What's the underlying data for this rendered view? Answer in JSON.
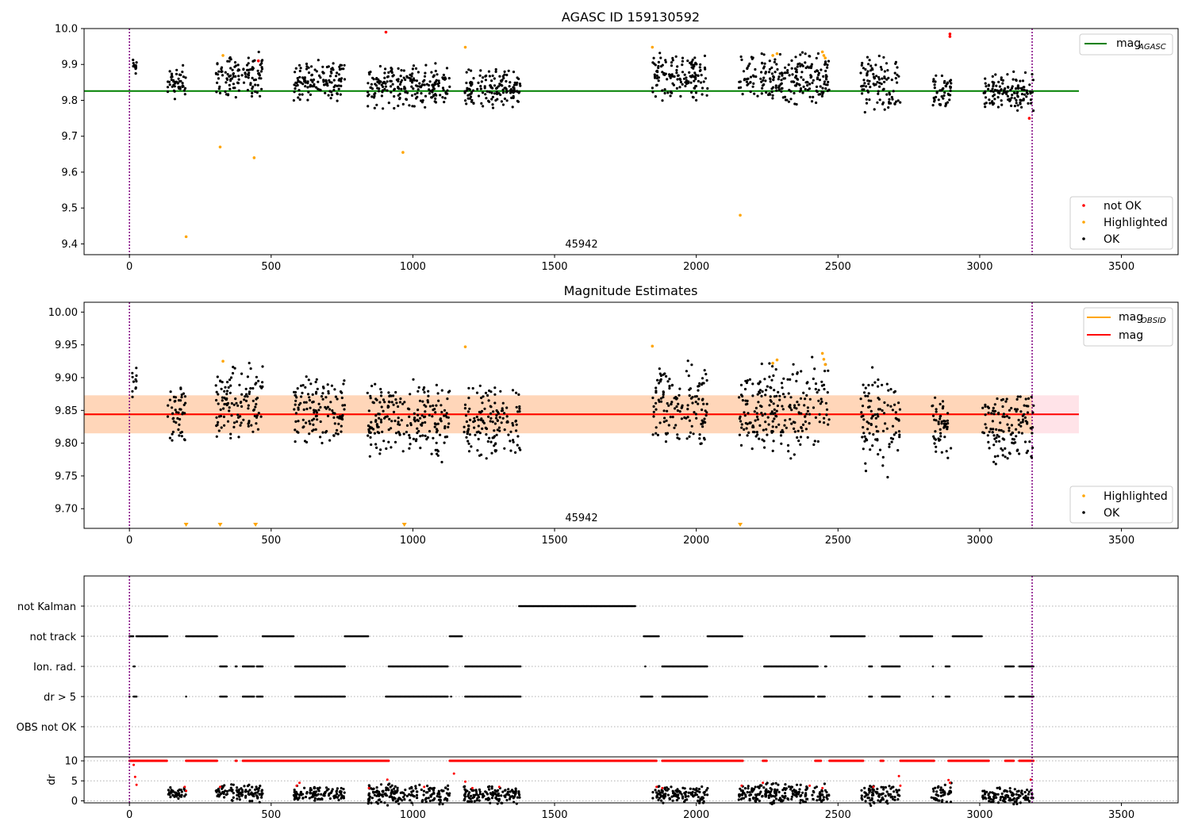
{
  "chart_data": [
    {
      "type": "scatter",
      "title": "AGASC ID 159130592",
      "annotation": "45942",
      "xlim": [
        -160,
        3700
      ],
      "ylim": [
        9.37,
        10.0
      ],
      "xticks": [
        "0",
        "500",
        "1000",
        "1500",
        "2000",
        "2500",
        "3000",
        "3500"
      ],
      "yticks": [
        "9.4",
        "9.5",
        "9.6",
        "9.7",
        "9.8",
        "9.9",
        "10.0"
      ],
      "vlines": [
        0,
        3185
      ],
      "hline": {
        "name": "mag_AGASC",
        "legend_label": "mag",
        "legend_sub": "AGASC",
        "y": 9.826,
        "x_range": [
          -160,
          3350
        ],
        "color": "#008000"
      },
      "series": [
        {
          "name": "not OK",
          "color": "#ff0000",
          "points": [
            [
              905,
              9.99
            ],
            [
              455,
              9.91
            ],
            [
              2895,
              9.985
            ],
            [
              2895,
              9.978
            ],
            [
              3175,
              9.75
            ]
          ]
        },
        {
          "name": "Highlighted",
          "color": "#ffa500",
          "points": [
            [
              200,
              9.42
            ],
            [
              320,
              9.67
            ],
            [
              440,
              9.64
            ],
            [
              330,
              9.925
            ],
            [
              965,
              9.655
            ],
            [
              1185,
              9.948
            ],
            [
              1845,
              9.948
            ],
            [
              2155,
              9.48
            ],
            [
              2270,
              9.925
            ],
            [
              2285,
              9.93
            ],
            [
              2445,
              9.935
            ],
            [
              2450,
              9.925
            ],
            [
              2455,
              9.918
            ]
          ]
        },
        {
          "name": "OK",
          "color": "#000000",
          "clusters": [
            [
              10,
              25,
              9.895,
              0.03
            ],
            [
              135,
              200,
              9.85,
              0.06
            ],
            [
              305,
              470,
              9.87,
              0.07
            ],
            [
              580,
              760,
              9.855,
              0.06
            ],
            [
              840,
              1130,
              9.84,
              0.07
            ],
            [
              1180,
              1380,
              9.835,
              0.06
            ],
            [
              1845,
              2040,
              9.865,
              0.07
            ],
            [
              2150,
              2470,
              9.86,
              0.08
            ],
            [
              2580,
              2720,
              9.845,
              0.09
            ],
            [
              2830,
              2900,
              9.825,
              0.05
            ],
            [
              3010,
              3190,
              9.825,
              0.06
            ]
          ]
        }
      ]
    },
    {
      "type": "scatter",
      "title": "Magnitude Estimates",
      "annotation": "45942",
      "xlim": [
        -160,
        3700
      ],
      "ylim": [
        9.67,
        10.015
      ],
      "xticks": [
        "0",
        "500",
        "1000",
        "1500",
        "2000",
        "2500",
        "3000",
        "3500"
      ],
      "yticks": [
        "9.70",
        "9.75",
        "9.80",
        "9.85",
        "9.90",
        "9.95",
        "10.00"
      ],
      "vlines": [
        0,
        3185
      ],
      "band": {
        "y_low": 9.815,
        "y_high": 9.873,
        "x_range": [
          -160,
          3350
        ]
      },
      "mag_line": {
        "name": "mag",
        "y": 9.844,
        "x_range": [
          -160,
          3350
        ],
        "color": "#ff0000"
      },
      "obsid_segment": {
        "name": "mag_OBSID",
        "legend_label": "mag",
        "legend_sub": "OBSID",
        "y": 9.844,
        "x_range": [
          -160,
          3185
        ],
        "color": "#ffa500"
      },
      "series": [
        {
          "name": "Highlighted",
          "color": "#ffa500",
          "points": [
            [
              330,
              9.925
            ],
            [
              1185,
              9.947
            ],
            [
              1845,
              9.948
            ],
            [
              2270,
              9.922
            ],
            [
              2285,
              9.927
            ],
            [
              2445,
              9.937
            ],
            [
              2450,
              9.928
            ],
            [
              2455,
              9.92
            ]
          ],
          "offscale_markers": [
            200,
            320,
            445,
            970,
            2155
          ]
        },
        {
          "name": "OK",
          "color": "#000000",
          "clusters": [
            [
              10,
              25,
              9.895,
              0.03
            ],
            [
              135,
              200,
              9.845,
              0.05
            ],
            [
              305,
              470,
              9.865,
              0.07
            ],
            [
              580,
              760,
              9.85,
              0.06
            ],
            [
              840,
              1130,
              9.835,
              0.07
            ],
            [
              1180,
              1380,
              9.83,
              0.06
            ],
            [
              1845,
              2040,
              9.86,
              0.07
            ],
            [
              2150,
              2470,
              9.855,
              0.08
            ],
            [
              2580,
              2720,
              9.835,
              0.09
            ],
            [
              2830,
              2900,
              9.82,
              0.06
            ],
            [
              3010,
              3190,
              9.82,
              0.06
            ]
          ]
        }
      ]
    },
    {
      "type": "scatter",
      "title": "",
      "xlim": [
        -160,
        3700
      ],
      "categories": [
        "not Kalman",
        "not track",
        "Ion. rad.",
        "dr > 5",
        "OBS not OK"
      ],
      "flag_segments": {
        "not Kalman": [
          [
            1375,
            1785
          ]
        ],
        "not track": [
          [
            0,
            15
          ],
          [
            25,
            135
          ],
          [
            200,
            310
          ],
          [
            470,
            580
          ],
          [
            760,
            845
          ],
          [
            1130,
            1175
          ],
          [
            1815,
            1870
          ],
          [
            2040,
            2165
          ],
          [
            2475,
            2595
          ],
          [
            2720,
            2835
          ],
          [
            2905,
            3010
          ]
        ],
        "Ion. rad.": [
          [
            15,
            20
          ],
          [
            320,
            345
          ],
          [
            375,
            380
          ],
          [
            400,
            440
          ],
          [
            450,
            470
          ],
          [
            585,
            760
          ],
          [
            915,
            1125
          ],
          [
            1185,
            1380
          ],
          [
            1820,
            1823
          ],
          [
            1880,
            2040
          ],
          [
            2240,
            2430
          ],
          [
            2455,
            2460
          ],
          [
            2610,
            2620
          ],
          [
            2655,
            2720
          ],
          [
            2835,
            2838
          ],
          [
            2880,
            2895
          ],
          [
            3090,
            3120
          ],
          [
            3140,
            3190
          ]
        ],
        "dr > 5": [
          [
            0,
            3
          ],
          [
            15,
            25
          ],
          [
            200,
            203
          ],
          [
            320,
            345
          ],
          [
            400,
            440
          ],
          [
            450,
            470
          ],
          [
            585,
            760
          ],
          [
            905,
            1125
          ],
          [
            1135,
            1138
          ],
          [
            1185,
            1380
          ],
          [
            1805,
            1845
          ],
          [
            1880,
            2040
          ],
          [
            2240,
            2415
          ],
          [
            2430,
            2455
          ],
          [
            2610,
            2620
          ],
          [
            2655,
            2720
          ],
          [
            2835,
            2838
          ],
          [
            2880,
            2895
          ],
          [
            3090,
            3120
          ],
          [
            3140,
            3190
          ]
        ],
        "OBS not OK": []
      },
      "dr_panel": {
        "ylabel": "dr",
        "ylim": [
          -0.5,
          11
        ],
        "yticks": [
          "0",
          "5",
          "10"
        ],
        "capped_value": 10,
        "capped_segments": [
          [
            0,
            135
          ],
          [
            200,
            310
          ],
          [
            375,
            380
          ],
          [
            400,
            915
          ],
          [
            1130,
            1860
          ],
          [
            1880,
            2165
          ],
          [
            2235,
            2250
          ],
          [
            2420,
            2440
          ],
          [
            2470,
            2590
          ],
          [
            2650,
            2660
          ],
          [
            2720,
            2840
          ],
          [
            2890,
            3035
          ],
          [
            3090,
            3120
          ],
          [
            3140,
            3190
          ]
        ],
        "clusters": [
          [
            135,
            200,
            2.0,
            1.5
          ],
          [
            305,
            470,
            2.0,
            2.5
          ],
          [
            580,
            760,
            1.8,
            2.0
          ],
          [
            840,
            1130,
            1.5,
            3.0
          ],
          [
            1180,
            1380,
            1.5,
            2.5
          ],
          [
            1845,
            2040,
            1.5,
            2.5
          ],
          [
            2150,
            2470,
            1.8,
            3.0
          ],
          [
            2580,
            2720,
            1.5,
            3.0
          ],
          [
            2830,
            2900,
            2.0,
            3.0
          ],
          [
            3010,
            3190,
            1.2,
            2.5
          ]
        ],
        "red_points": [
          [
            15,
            9
          ],
          [
            20,
            6
          ],
          [
            25,
            4
          ],
          [
            195,
            3.5
          ],
          [
            200,
            2.5
          ],
          [
            320,
            3.5
          ],
          [
            590,
            3.8
          ],
          [
            600,
            4.5
          ],
          [
            845,
            3.2
          ],
          [
            910,
            5.3
          ],
          [
            1040,
            3.5
          ],
          [
            1145,
            6.8
          ],
          [
            1185,
            4.8
          ],
          [
            1210,
            3.2
          ],
          [
            1305,
            3.5
          ],
          [
            1860,
            3.5
          ],
          [
            1880,
            3.2
          ],
          [
            2160,
            3.8
          ],
          [
            2235,
            4.5
          ],
          [
            2400,
            3.8
          ],
          [
            2445,
            3.2
          ],
          [
            2625,
            3.5
          ],
          [
            2715,
            6.2
          ],
          [
            2720,
            3.8
          ],
          [
            2895,
            4.5
          ],
          [
            2890,
            5.2
          ],
          [
            3180,
            5.3
          ]
        ]
      }
    }
  ],
  "legends": {
    "top_right_line": "mag_AGASC",
    "top_bottom_right": [
      "not OK",
      "Highlighted",
      "OK"
    ],
    "mid_top_right": [
      "mag_OBSID",
      "mag"
    ],
    "mid_bottom_right": [
      "Highlighted",
      "OK"
    ]
  }
}
